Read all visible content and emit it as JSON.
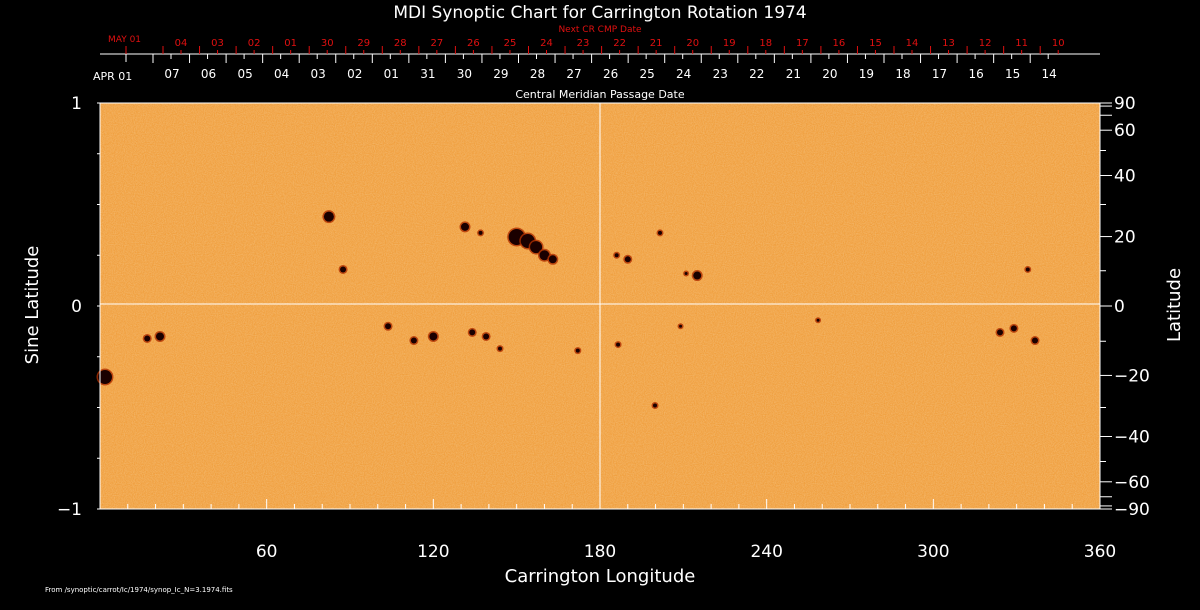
{
  "chart_data": {
    "type": "heatmap",
    "title": "MDI Synoptic Chart for Carrington Rotation 1974",
    "xlabel": "Carrington Longitude",
    "ylabel_left": "Sine Latitude",
    "ylabel_right": "Latitude",
    "xlim": [
      0,
      360
    ],
    "ylim": [
      -1,
      1
    ],
    "x_ticks": [
      60,
      120,
      180,
      240,
      300,
      360
    ],
    "y_ticks_left": [
      {
        "v": 1,
        "label": "1"
      },
      {
        "v": 0,
        "label": "0"
      },
      {
        "v": -1,
        "label": "−1"
      }
    ],
    "y_ticks_right": [
      90,
      60,
      40,
      20,
      0,
      -20,
      -40,
      -60,
      -90
    ],
    "top_axis": {
      "label": "Central Meridian Passage Date",
      "start_label": "APR 01",
      "dates": [
        "07",
        "06",
        "05",
        "04",
        "03",
        "02",
        "01",
        "31",
        "30",
        "29",
        "28",
        "27",
        "26",
        "25",
        "24",
        "23",
        "22",
        "21",
        "20",
        "19",
        "18",
        "17",
        "16",
        "15",
        "14"
      ]
    },
    "next_axis": {
      "label": "Next CR CMP Date",
      "start_label": "MAY 01",
      "dates": [
        "04",
        "03",
        "02",
        "01",
        "30",
        "29",
        "28",
        "27",
        "26",
        "25",
        "24",
        "23",
        "22",
        "21",
        "20",
        "19",
        "18",
        "17",
        "16",
        "15",
        "14",
        "13",
        "12",
        "11",
        "10"
      ]
    },
    "grid_lines": {
      "longitude": 180,
      "sine_latitude": 0
    },
    "sunspots": [
      {
        "lon": 82.4,
        "sinlat": 0.44,
        "size": 5
      },
      {
        "lon": 87.5,
        "sinlat": 0.18,
        "size": 3
      },
      {
        "lon": 131.4,
        "sinlat": 0.39,
        "size": 4
      },
      {
        "lon": 137,
        "sinlat": 0.36,
        "size": 2
      },
      {
        "lon": 150,
        "sinlat": 0.34,
        "size": 8
      },
      {
        "lon": 154,
        "sinlat": 0.32,
        "size": 7
      },
      {
        "lon": 157,
        "sinlat": 0.29,
        "size": 6
      },
      {
        "lon": 160,
        "sinlat": 0.25,
        "size": 5
      },
      {
        "lon": 163,
        "sinlat": 0.23,
        "size": 4
      },
      {
        "lon": 190,
        "sinlat": 0.23,
        "size": 3
      },
      {
        "lon": 186,
        "sinlat": 0.25,
        "size": 2
      },
      {
        "lon": 201.6,
        "sinlat": 0.36,
        "size": 2
      },
      {
        "lon": 215,
        "sinlat": 0.15,
        "size": 4
      },
      {
        "lon": 211,
        "sinlat": 0.16,
        "size": 1.5
      },
      {
        "lon": 334,
        "sinlat": 0.18,
        "size": 2
      },
      {
        "lon": 1.8,
        "sinlat": -0.35,
        "size": 7
      },
      {
        "lon": 21.6,
        "sinlat": -0.15,
        "size": 4
      },
      {
        "lon": 17,
        "sinlat": -0.16,
        "size": 3
      },
      {
        "lon": 103.7,
        "sinlat": -0.1,
        "size": 3
      },
      {
        "lon": 120,
        "sinlat": -0.15,
        "size": 4
      },
      {
        "lon": 113,
        "sinlat": -0.17,
        "size": 3
      },
      {
        "lon": 139,
        "sinlat": -0.15,
        "size": 3
      },
      {
        "lon": 134,
        "sinlat": -0.13,
        "size": 3
      },
      {
        "lon": 144,
        "sinlat": -0.21,
        "size": 2
      },
      {
        "lon": 172,
        "sinlat": -0.22,
        "size": 2
      },
      {
        "lon": 186.5,
        "sinlat": -0.19,
        "size": 2
      },
      {
        "lon": 199.8,
        "sinlat": -0.49,
        "size": 2
      },
      {
        "lon": 209,
        "sinlat": -0.1,
        "size": 1.5
      },
      {
        "lon": 258.5,
        "sinlat": -0.07,
        "size": 1.5
      },
      {
        "lon": 324,
        "sinlat": -0.13,
        "size": 3
      },
      {
        "lon": 329,
        "sinlat": -0.11,
        "size": 3
      },
      {
        "lon": 336.6,
        "sinlat": -0.17,
        "size": 3
      }
    ],
    "colors": {
      "photosphere": "#f0a040",
      "spot": "#1a0000",
      "background": "#000000",
      "next_axis": "#e01010"
    }
  },
  "footer": "From /synoptic/carrot/Ic/1974/synop_Ic_N=3.1974.fits"
}
